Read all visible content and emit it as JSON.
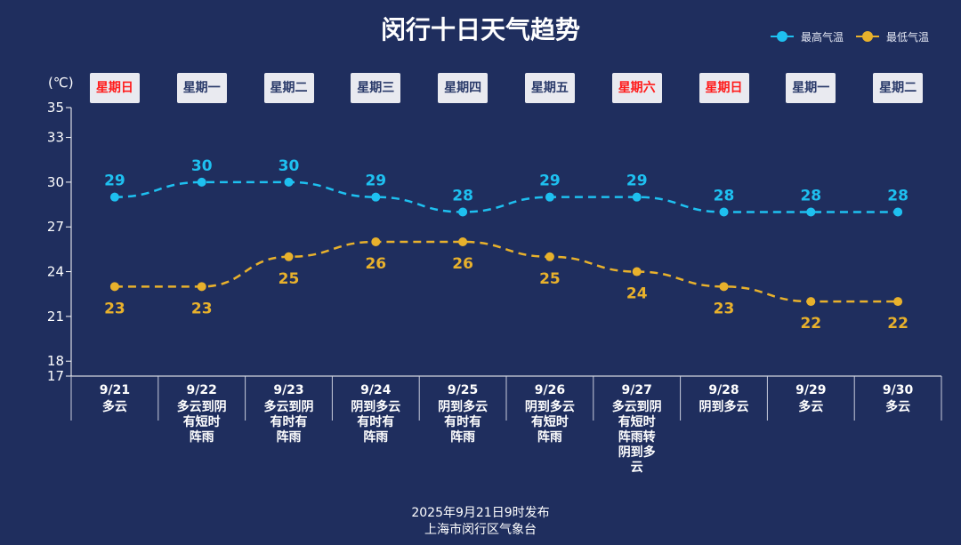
{
  "title": "闵行十日天气趋势",
  "unit_label": "(℃)",
  "colors": {
    "background": "#1f2e5e",
    "high": "#1ec0f0",
    "low": "#e8b12c",
    "weekend": "#ff1a1a",
    "weekday": "#2a3a6a"
  },
  "legend": {
    "high": "最高气温",
    "low": "最低气温"
  },
  "footer": {
    "line1": "2025年9月21日9时发布",
    "line2": "上海市闵行区气象台"
  },
  "chart_data": {
    "type": "line",
    "ylim": [
      17,
      35
    ],
    "yticks": [
      17,
      18,
      21,
      24,
      27,
      30,
      33,
      35
    ],
    "categories": [
      "9/21",
      "9/22",
      "9/23",
      "9/24",
      "9/25",
      "9/26",
      "9/27",
      "9/28",
      "9/29",
      "9/30"
    ],
    "weekdays": [
      "星期日",
      "星期一",
      "星期二",
      "星期三",
      "星期四",
      "星期五",
      "星期六",
      "星期日",
      "星期一",
      "星期二"
    ],
    "weekend": [
      true,
      false,
      false,
      false,
      false,
      false,
      true,
      true,
      false,
      false
    ],
    "conditions": [
      [
        "多云"
      ],
      [
        "多云到阴",
        "有短时",
        "阵雨"
      ],
      [
        "多云到阴",
        "有时有",
        "阵雨"
      ],
      [
        "阴到多云",
        "有时有",
        "阵雨"
      ],
      [
        "阴到多云",
        "有时有",
        "阵雨"
      ],
      [
        "阴到多云",
        "有短时",
        "阵雨"
      ],
      [
        "多云到阴",
        "有短时",
        "阵雨转",
        "阴到多",
        "云"
      ],
      [
        "阴到多云"
      ],
      [
        "多云"
      ],
      [
        "多云"
      ]
    ],
    "series": [
      {
        "name": "最高气温",
        "values": [
          29,
          30,
          30,
          29,
          28,
          29,
          29,
          28,
          28,
          28
        ]
      },
      {
        "name": "最低气温",
        "values": [
          23,
          23,
          25,
          26,
          26,
          25,
          24,
          23,
          22,
          22
        ]
      }
    ],
    "legend_position": "top-right",
    "grid": false
  }
}
